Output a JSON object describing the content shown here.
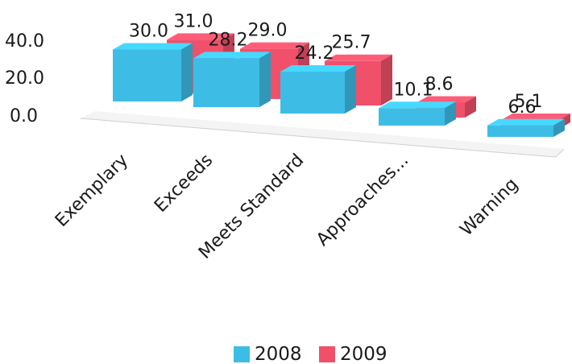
{
  "chart_data": {
    "type": "bar",
    "categories": [
      "Exemplary",
      "Exceeds",
      "Meets Standard",
      "Approaches...",
      "Warning"
    ],
    "series": [
      {
        "name": "2008",
        "values": [
          30.0,
          28.2,
          24.2,
          10.1,
          6.6
        ],
        "color": "#3dbde6"
      },
      {
        "name": "2009",
        "values": [
          31.0,
          29.0,
          25.7,
          8.6,
          5.1
        ],
        "color": "#f0506a"
      }
    ],
    "y_ticks": [
      "40.0",
      "20.0",
      "0.0"
    ],
    "ylim": [
      0,
      40
    ],
    "style": "3d-clustered-column",
    "grid": false,
    "legend_position": "bottom"
  }
}
